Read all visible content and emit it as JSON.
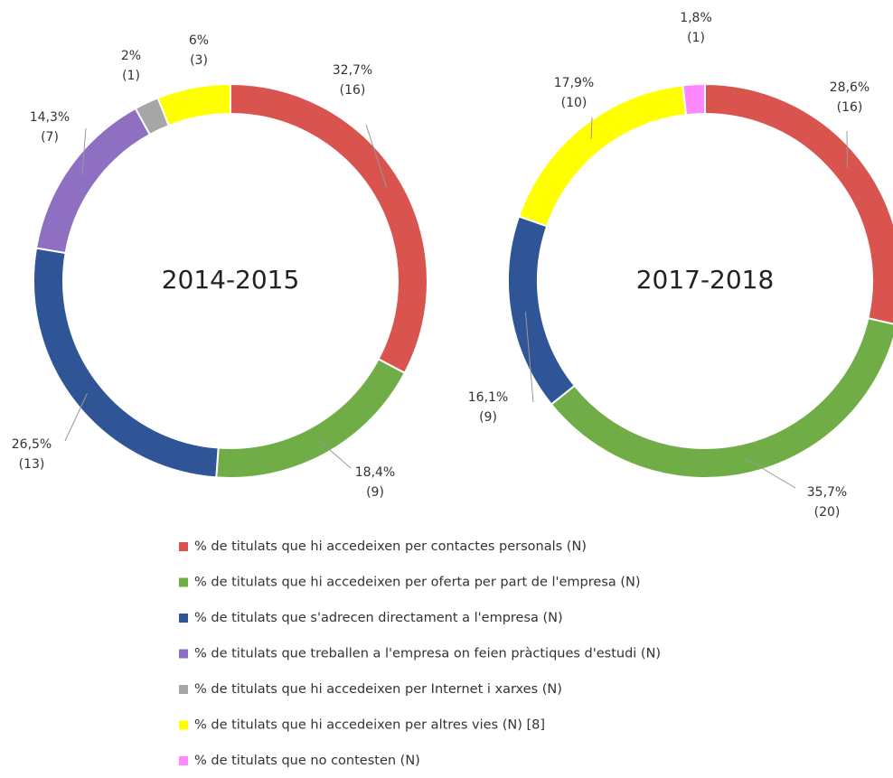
{
  "chart_data": [
    {
      "type": "pie",
      "title": "2014-2015",
      "values": [
        32.7,
        18.4,
        26.5,
        14.3,
        2,
        6
      ],
      "value_labels": [
        "32,7%",
        "18,4%",
        "26,5%",
        "14,3%",
        "2%",
        "6%"
      ],
      "counts": [
        16,
        9,
        13,
        7,
        1,
        3
      ],
      "count_labels": [
        "(16)",
        "(9)",
        "(13)",
        "(7)",
        "(1)",
        "(3)"
      ],
      "colors": [
        "#d9544f",
        "#70ad47",
        "#2f5597",
        "#8e6fc1",
        "#a6a6a6",
        "#ffff00"
      ]
    },
    {
      "type": "pie",
      "title": "2017-2018",
      "values": [
        28.6,
        35.7,
        16.1,
        17.9,
        1.8
      ],
      "value_labels": [
        "28,6%",
        "35,7%",
        "16,1%",
        "17,9%",
        "1,8%"
      ],
      "counts": [
        16,
        20,
        9,
        10,
        1
      ],
      "count_labels": [
        "(16)",
        "(20)",
        "(9)",
        "(10)",
        "(1)"
      ],
      "colors": [
        "#d9544f",
        "#70ad47",
        "#2f5597",
        "#ffff00",
        "#ff88ff"
      ]
    }
  ],
  "legend": {
    "labels": [
      "% de titulats que hi accedeixen per contactes personals (N)",
      "% de titulats que hi accedeixen per oferta per part de l'empresa (N)",
      "% de titulats que s'adrecen directament a l'empresa (N)",
      "% de titulats que treballen a l'empresa on feien pràctiques d'estudi (N)",
      "% de titulats que hi accedeixen per Internet i xarxes (N)",
      "% de titulats que hi accedeixen per altres vies (N) [8]",
      "% de titulats que no contesten (N)"
    ],
    "colors": [
      "#d9544f",
      "#70ad47",
      "#2f5597",
      "#8e6fc1",
      "#a6a6a6",
      "#ffff00",
      "#ff88ff"
    ]
  }
}
